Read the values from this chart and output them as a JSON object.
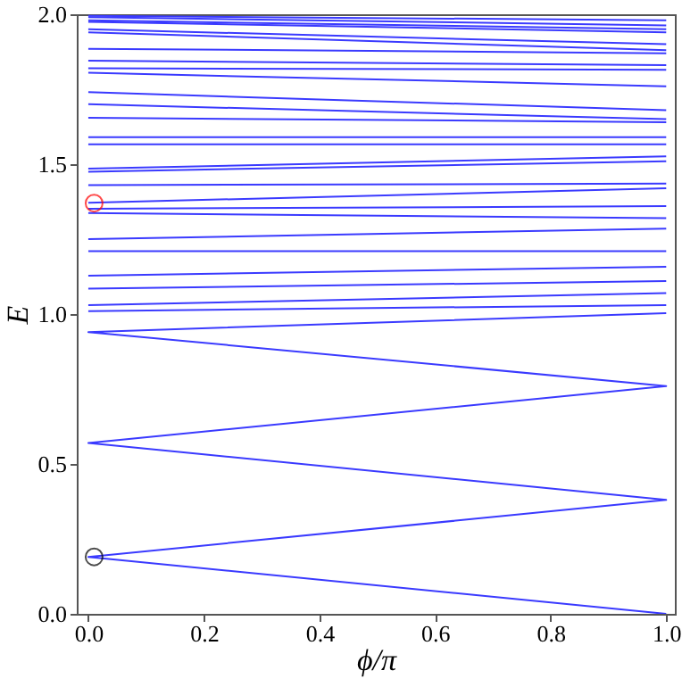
{
  "chart_data": {
    "type": "line",
    "xlabel": "ϕ/π",
    "ylabel": "E",
    "xlim": [
      -0.02,
      1.015
    ],
    "ylim": [
      0,
      2
    ],
    "xticks": [
      {
        "value": 0,
        "label": "0.0"
      },
      {
        "value": 0.2,
        "label": "0.2"
      },
      {
        "value": 0.4,
        "label": "0.4"
      },
      {
        "value": 0.6,
        "label": "0.6"
      },
      {
        "value": 0.8,
        "label": "0.8"
      },
      {
        "value": 1,
        "label": "1.0"
      }
    ],
    "yticks": [
      {
        "value": 0,
        "label": "0.0"
      },
      {
        "value": 0.5,
        "label": "0.5"
      },
      {
        "value": 1,
        "label": "1.0"
      },
      {
        "value": 1.5,
        "label": "1.5"
      },
      {
        "value": 2,
        "label": "2.0"
      }
    ],
    "grid": false,
    "line_style": "solid",
    "marker": "none",
    "series": [
      {
        "color": "#3a3aff",
        "x": [
          1,
          0,
          1,
          0,
          1,
          0,
          1
        ],
        "values": [
          0,
          0.19,
          0.38,
          0.57,
          0.76,
          0.94,
          1.003
        ]
      },
      {
        "color": "#3a3aff",
        "x": [
          0,
          1
        ],
        "values": [
          1.01,
          1.03
        ]
      },
      {
        "color": "#3a3aff",
        "x": [
          0,
          1
        ],
        "values": [
          1.03,
          1.07
        ]
      },
      {
        "color": "#3a3aff",
        "x": [
          0,
          1
        ],
        "values": [
          1.085,
          1.11
        ]
      },
      {
        "color": "#3a3aff",
        "x": [
          0,
          1
        ],
        "values": [
          1.128,
          1.158
        ]
      },
      {
        "color": "#3a3aff",
        "x": [
          0,
          1
        ],
        "values": [
          1.21,
          1.21
        ]
      },
      {
        "color": "#3a3aff",
        "x": [
          0,
          1
        ],
        "values": [
          1.25,
          1.285
        ]
      },
      {
        "color": "#3a3aff",
        "x": [
          0,
          1
        ],
        "values": [
          1.337,
          1.32
        ]
      },
      {
        "color": "#3a3aff",
        "x": [
          0,
          1
        ],
        "values": [
          1.351,
          1.36
        ]
      },
      {
        "color": "#3a3aff",
        "x": [
          0,
          1
        ],
        "values": [
          1.371,
          1.42
        ]
      },
      {
        "color": "#3a3aff",
        "x": [
          0,
          1
        ],
        "values": [
          1.43,
          1.435
        ]
      },
      {
        "color": "#3a3aff",
        "x": [
          0,
          1
        ],
        "values": [
          1.475,
          1.51
        ]
      },
      {
        "color": "#3a3aff",
        "x": [
          0,
          1
        ],
        "values": [
          1.485,
          1.526
        ]
      },
      {
        "color": "#3a3aff",
        "x": [
          0,
          1
        ],
        "values": [
          1.566,
          1.566
        ]
      },
      {
        "color": "#3a3aff",
        "x": [
          0,
          1
        ],
        "values": [
          1.59,
          1.59
        ]
      },
      {
        "color": "#3a3aff",
        "x": [
          0,
          1
        ],
        "values": [
          1.655,
          1.64
        ]
      },
      {
        "color": "#3a3aff",
        "x": [
          0,
          1
        ],
        "values": [
          1.7,
          1.65
        ]
      },
      {
        "color": "#3a3aff",
        "x": [
          0,
          1
        ],
        "values": [
          1.74,
          1.68
        ]
      },
      {
        "color": "#3a3aff",
        "x": [
          0,
          1
        ],
        "values": [
          1.805,
          1.76
        ]
      },
      {
        "color": "#3a3aff",
        "x": [
          0,
          1
        ],
        "values": [
          1.82,
          1.815
        ]
      },
      {
        "color": "#3a3aff",
        "x": [
          0,
          1
        ],
        "values": [
          1.845,
          1.83
        ]
      },
      {
        "color": "#3a3aff",
        "x": [
          0,
          1
        ],
        "values": [
          1.885,
          1.87
        ]
      },
      {
        "color": "#3a3aff",
        "x": [
          0,
          1
        ],
        "values": [
          1.94,
          1.88
        ]
      },
      {
        "color": "#3a3aff",
        "x": [
          0,
          1
        ],
        "values": [
          1.95,
          1.9
        ]
      },
      {
        "color": "#3a3aff",
        "x": [
          0,
          1
        ],
        "values": [
          1.975,
          1.94
        ]
      },
      {
        "color": "#3a3aff",
        "x": [
          0,
          1
        ],
        "values": [
          1.98,
          1.95
        ]
      },
      {
        "color": "#3a3aff",
        "x": [
          0,
          1
        ],
        "values": [
          1.99,
          1.963
        ]
      },
      {
        "color": "#3a3aff",
        "x": [
          0,
          1
        ],
        "values": [
          1.995,
          1.98
        ]
      },
      {
        "type": "scatter",
        "marker": "circle",
        "color": "#000000",
        "x": [
          0.01
        ],
        "values": [
          0.19
        ]
      },
      {
        "type": "scatter",
        "marker": "circle",
        "color": "#ff0000",
        "x": [
          0.01
        ],
        "values": [
          1.37
        ]
      }
    ]
  }
}
